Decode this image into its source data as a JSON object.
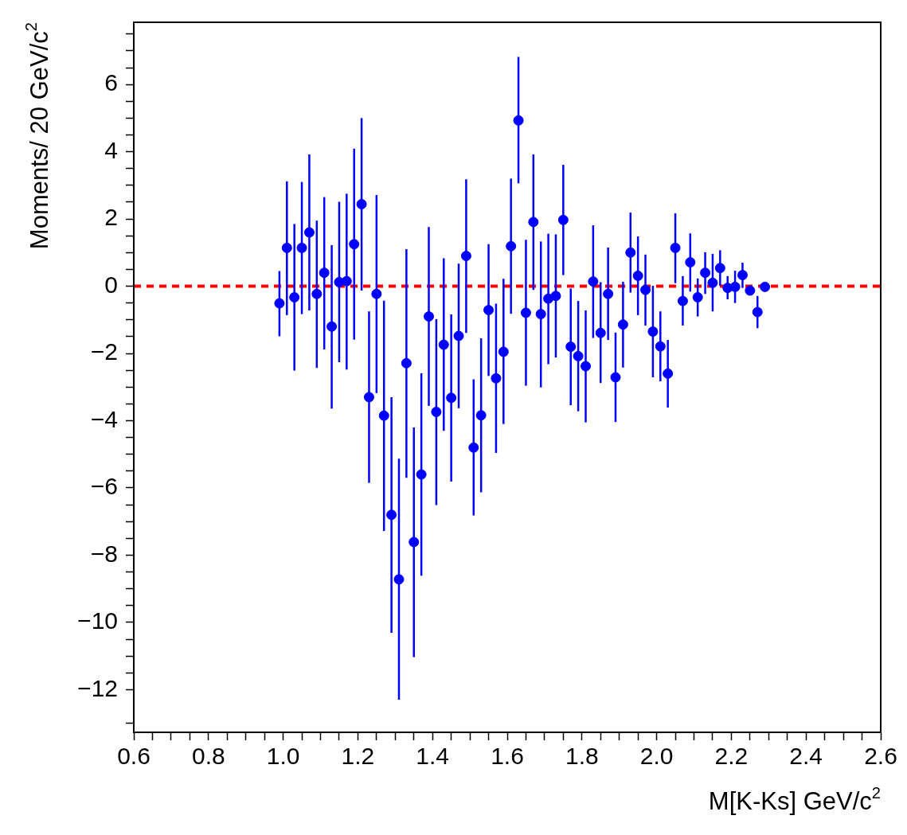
{
  "chart_data": {
    "type": "scatter",
    "xlabel": "M[K-Ks] GeV/c$^{2}$",
    "ylabel": "Moments/ 20 GeV/c$^{2}$",
    "x": [
      0.99,
      1.01,
      1.03,
      1.05,
      1.07,
      1.09,
      1.11,
      1.13,
      1.15,
      1.17,
      1.19,
      1.21,
      1.23,
      1.25,
      1.27,
      1.29,
      1.31,
      1.33,
      1.35,
      1.37,
      1.39,
      1.41,
      1.43,
      1.45,
      1.47,
      1.49,
      1.51,
      1.53,
      1.55,
      1.57,
      1.59,
      1.61,
      1.63,
      1.65,
      1.67,
      1.69,
      1.71,
      1.73,
      1.75,
      1.77,
      1.79,
      1.81,
      1.83,
      1.85,
      1.87,
      1.89,
      1.91,
      1.93,
      1.95,
      1.97,
      1.99,
      2.01,
      2.03,
      2.05,
      2.07,
      2.09,
      2.11,
      2.13,
      2.15,
      2.17,
      2.19,
      2.21,
      2.23,
      2.25,
      2.27,
      2.29
    ],
    "series": [
      {
        "color": "#0000ff",
        "values": [
          -0.51,
          1.14,
          -0.33,
          1.14,
          1.6,
          -0.23,
          0.4,
          -1.2,
          0.12,
          0.15,
          1.25,
          2.44,
          -3.3,
          -0.23,
          -3.85,
          -6.8,
          -8.72,
          -2.29,
          -7.61,
          -5.6,
          -0.9,
          -3.74,
          -1.74,
          -3.32,
          -1.48,
          0.9,
          -4.8,
          -3.84,
          -0.71,
          -2.74,
          -1.95,
          1.19,
          4.93,
          -0.79,
          1.91,
          -0.83,
          -0.37,
          -0.29,
          1.97,
          -1.8,
          -2.08,
          -2.38,
          0.14,
          -1.39,
          -0.23,
          -2.71,
          -1.14,
          1.0,
          0.31,
          -0.11,
          -1.35,
          -1.79,
          -2.6,
          1.14,
          -0.44,
          0.71,
          -0.33,
          0.4,
          0.1,
          0.54,
          -0.05,
          -0.02,
          0.33,
          -0.13,
          -0.77,
          -0.02
        ],
        "errors": [
          [
            -1.49,
            0.45
          ],
          [
            -0.86,
            3.12
          ],
          [
            -2.51,
            1.85
          ],
          [
            -0.83,
            3.1
          ],
          [
            -0.72,
            3.92
          ],
          [
            -2.43,
            1.95
          ],
          [
            -1.88,
            2.65
          ],
          [
            -3.64,
            1.22
          ],
          [
            -2.26,
            2.51
          ],
          [
            -2.48,
            2.75
          ],
          [
            -1.59,
            4.09
          ],
          [
            -0.13,
            5.0
          ],
          [
            -5.85,
            -0.75
          ],
          [
            -3.18,
            2.71
          ],
          [
            -7.28,
            -0.43
          ],
          [
            -10.31,
            -3.3
          ],
          [
            -12.3,
            -5.13
          ],
          [
            -5.7,
            1.1
          ],
          [
            -11.03,
            -4.2
          ],
          [
            -8.61,
            -2.59
          ],
          [
            -3.56,
            1.76
          ],
          [
            -6.51,
            -0.98
          ],
          [
            -4.3,
            0.83
          ],
          [
            -5.81,
            -0.84
          ],
          [
            -3.63,
            0.67
          ],
          [
            -1.39,
            3.18
          ],
          [
            -6.82,
            -2.77
          ],
          [
            -6.13,
            -1.55
          ],
          [
            -2.67,
            1.25
          ],
          [
            -4.96,
            -0.52
          ],
          [
            -4.1,
            0.22
          ],
          [
            -0.82,
            3.2
          ],
          [
            3.06,
            6.82
          ],
          [
            -2.96,
            1.38
          ],
          [
            -0.11,
            3.92
          ],
          [
            -3.01,
            1.33
          ],
          [
            -2.32,
            1.56
          ],
          [
            -2.12,
            1.54
          ],
          [
            0.33,
            3.61
          ],
          [
            -3.54,
            -0.07
          ],
          [
            -3.72,
            -0.44
          ],
          [
            -4.05,
            -0.72
          ],
          [
            -1.54,
            1.81
          ],
          [
            -2.88,
            0.12
          ],
          [
            -1.6,
            1.15
          ],
          [
            -4.04,
            -1.38
          ],
          [
            -2.42,
            0.13
          ],
          [
            -0.19,
            2.19
          ],
          [
            -0.86,
            1.48
          ],
          [
            -1.17,
            0.94
          ],
          [
            -2.71,
            0.01
          ],
          [
            -2.83,
            -0.75
          ],
          [
            -3.61,
            -1.6
          ],
          [
            0.09,
            2.17
          ],
          [
            -1.17,
            0.3
          ],
          [
            -0.16,
            1.57
          ],
          [
            -0.9,
            0.23
          ],
          [
            -0.23,
            1.01
          ],
          [
            -0.75,
            0.96
          ],
          [
            0.01,
            1.07
          ],
          [
            -0.39,
            0.3
          ],
          [
            -0.5,
            0.46
          ],
          [
            -0.05,
            0.7
          ],
          null,
          [
            -1.25,
            -0.29
          ],
          null
        ]
      }
    ],
    "marker": "circle",
    "legend": false,
    "grid": false,
    "xlim": [
      0.6,
      2.6
    ],
    "ylim": [
      -13.27,
      7.85
    ],
    "xticks": [
      {
        "value": 0.6,
        "label": "0.6"
      },
      {
        "value": 0.65,
        "label": null
      },
      {
        "value": 0.7,
        "label": null
      },
      {
        "value": 0.75,
        "label": null
      },
      {
        "value": 0.8,
        "label": "0.8"
      },
      {
        "value": 0.85,
        "label": null
      },
      {
        "value": 0.9,
        "label": null
      },
      {
        "value": 0.95,
        "label": null
      },
      {
        "value": 1,
        "label": "1.0"
      },
      {
        "value": 1.05,
        "label": null
      },
      {
        "value": 1.1,
        "label": null
      },
      {
        "value": 1.15,
        "label": null
      },
      {
        "value": 1.2,
        "label": "1.2"
      },
      {
        "value": 1.25,
        "label": null
      },
      {
        "value": 1.3,
        "label": null
      },
      {
        "value": 1.35,
        "label": null
      },
      {
        "value": 1.4,
        "label": "1.4"
      },
      {
        "value": 1.45,
        "label": null
      },
      {
        "value": 1.5,
        "label": null
      },
      {
        "value": 1.55,
        "label": null
      },
      {
        "value": 1.6,
        "label": "1.6"
      },
      {
        "value": 1.65,
        "label": null
      },
      {
        "value": 1.7,
        "label": null
      },
      {
        "value": 1.75,
        "label": null
      },
      {
        "value": 1.8,
        "label": "1.8"
      },
      {
        "value": 1.85,
        "label": null
      },
      {
        "value": 1.9,
        "label": null
      },
      {
        "value": 1.95,
        "label": null
      },
      {
        "value": 2,
        "label": "2.0"
      },
      {
        "value": 2.05,
        "label": null
      },
      {
        "value": 2.1,
        "label": null
      },
      {
        "value": 2.15,
        "label": null
      },
      {
        "value": 2.2,
        "label": "2.2"
      },
      {
        "value": 2.25,
        "label": null
      },
      {
        "value": 2.3,
        "label": null
      },
      {
        "value": 2.35,
        "label": null
      },
      {
        "value": 2.4,
        "label": "2.4"
      },
      {
        "value": 2.45,
        "label": null
      },
      {
        "value": 2.5,
        "label": null
      },
      {
        "value": 2.55,
        "label": null
      },
      {
        "value": 2.6,
        "label": "2.6"
      }
    ],
    "yticks": [
      {
        "value": -13,
        "label": null
      },
      {
        "value": -12,
        "label": "−12"
      },
      {
        "value": -11.5,
        "label": null
      },
      {
        "value": -11,
        "label": null
      },
      {
        "value": -10.5,
        "label": null
      },
      {
        "value": -10,
        "label": "−10"
      },
      {
        "value": -9.5,
        "label": null
      },
      {
        "value": -9,
        "label": null
      },
      {
        "value": -8.5,
        "label": null
      },
      {
        "value": -8,
        "label": "−8"
      },
      {
        "value": -7.5,
        "label": null
      },
      {
        "value": -7,
        "label": null
      },
      {
        "value": -6.5,
        "label": null
      },
      {
        "value": -6,
        "label": "−6"
      },
      {
        "value": -5.5,
        "label": null
      },
      {
        "value": -5,
        "label": null
      },
      {
        "value": -4.5,
        "label": null
      },
      {
        "value": -4,
        "label": "−4"
      },
      {
        "value": -3.5,
        "label": null
      },
      {
        "value": -3,
        "label": null
      },
      {
        "value": -2.5,
        "label": null
      },
      {
        "value": -2,
        "label": "−2"
      },
      {
        "value": -1.5,
        "label": null
      },
      {
        "value": -1,
        "label": null
      },
      {
        "value": -0.5,
        "label": null
      },
      {
        "value": 0,
        "label": "0"
      },
      {
        "value": 0.5,
        "label": null
      },
      {
        "value": 1,
        "label": null
      },
      {
        "value": 1.5,
        "label": null
      },
      {
        "value": 2,
        "label": "2"
      },
      {
        "value": 2.5,
        "label": null
      },
      {
        "value": 3,
        "label": null
      },
      {
        "value": 3.5,
        "label": null
      },
      {
        "value": 4,
        "label": "4"
      },
      {
        "value": 4.5,
        "label": null
      },
      {
        "value": 5,
        "label": null
      },
      {
        "value": 5.5,
        "label": null
      },
      {
        "value": 6,
        "label": "6"
      },
      {
        "value": 6.5,
        "label": null
      },
      {
        "value": 7,
        "label": null
      },
      {
        "value": 7.5,
        "label": null
      }
    ],
    "ref_lines": [
      {
        "axis": "y",
        "value": 0,
        "color": "#ff0000",
        "line_style": "dashed"
      }
    ]
  }
}
